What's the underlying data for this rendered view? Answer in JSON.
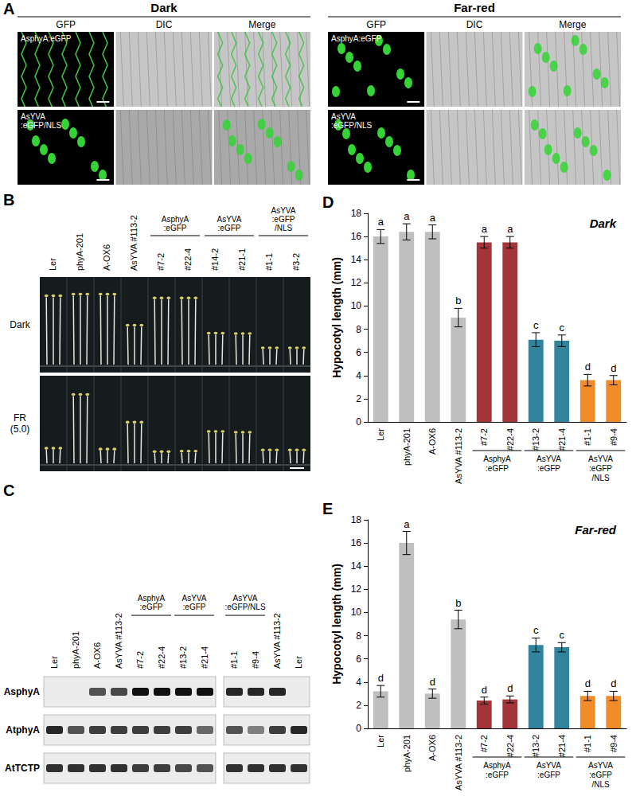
{
  "panel_A": {
    "label": "A",
    "groups": [
      {
        "title": "Dark",
        "columns": [
          "GFP",
          "DIC",
          "Merge"
        ],
        "rows": [
          "AsphyA:eGFP",
          "AsYVA\n:eGFP/NLS"
        ]
      },
      {
        "title": "Far-red",
        "columns": [
          "GFP",
          "DIC",
          "Merge"
        ],
        "rows": [
          "AsphyA:eGFP",
          "AsYVA\n:eGFP/NLS"
        ]
      }
    ]
  },
  "panel_B": {
    "label": "B",
    "lanes": [
      "Ler",
      "phyA-201",
      "A-OX6",
      "AsYVA #113-2",
      "#7-2",
      "#22-4",
      "#14-2",
      "#21-1",
      "#1-1",
      "#3-2"
    ],
    "groups": [
      {
        "label": "AsphyA\n:eGFP",
        "members": [
          "#7-2",
          "#22-4"
        ]
      },
      {
        "label": "AsYVA\n:eGFP",
        "members": [
          "#14-2",
          "#21-1"
        ]
      },
      {
        "label": "AsYVA\n:eGFP\n/NLS",
        "members": [
          "#1-1",
          "#3-2"
        ]
      }
    ],
    "rows": [
      "Dark",
      "FR\n(5.0)"
    ]
  },
  "panel_C": {
    "label": "C",
    "lanes": [
      [
        "Ler",
        "phyA-201",
        "A-OX6",
        "AsYVA #113-2",
        "#7-2",
        "#22-4",
        "#13-2",
        "#21-4"
      ],
      [
        "#1-1",
        "#9-4",
        "AsYVA #113-2",
        "Ler"
      ]
    ],
    "groups": [
      {
        "label": "AsphyA\n:eGFP",
        "members": [
          "#7-2",
          "#22-4"
        ]
      },
      {
        "label": "AsYVA\n:eGFP",
        "members": [
          "#13-2",
          "#21-4"
        ]
      },
      {
        "label": "AsYVA\n:eGFP/NLS",
        "members": [
          "#1-1",
          "#9-4"
        ]
      }
    ],
    "rows": [
      {
        "name": "AsphyA",
        "bands": [
          [
            0,
            0,
            0.7,
            0.75,
            1,
            1,
            1,
            1
          ],
          [
            0.9,
            0.9,
            0.9,
            0
          ]
        ]
      },
      {
        "name": "AtphyA",
        "bands": [
          [
            0.9,
            0.7,
            0.8,
            0.8,
            0.8,
            0.8,
            0.8,
            0.6
          ],
          [
            0.7,
            0.5,
            0.8,
            0.9
          ]
        ]
      },
      {
        "name": "AtTCTP",
        "bands": [
          [
            0.85,
            0.85,
            0.85,
            0.85,
            0.8,
            0.8,
            0.75,
            0.7
          ],
          [
            0.85,
            0.85,
            0.85,
            0.85
          ]
        ]
      }
    ]
  },
  "chart_data": [
    {
      "type": "bar",
      "panel": "D",
      "title": "Dark",
      "ylabel": "Hypocotyl length (mm)",
      "categories": [
        "Ler",
        "phyA-201",
        "A-OX6",
        "AsYVA #113-2",
        "#7-2",
        "#22-4",
        "#13-2",
        "#21-4",
        "#1-1",
        "#9-4"
      ],
      "values": [
        16.0,
        16.4,
        16.4,
        9.0,
        15.5,
        15.5,
        7.1,
        7.0,
        3.6,
        3.6
      ],
      "errors": [
        0.6,
        0.7,
        0.6,
        0.8,
        0.5,
        0.5,
        0.6,
        0.5,
        0.5,
        0.4
      ],
      "letters": [
        "a",
        "a",
        "a",
        "b",
        "a",
        "a",
        "c",
        "c",
        "d",
        "d"
      ],
      "colors": [
        "#bfbfbf",
        "#bfbfbf",
        "#bfbfbf",
        "#bfbfbf",
        "#a3343a",
        "#a3343a",
        "#31849b",
        "#31849b",
        "#f28c28",
        "#f28c28"
      ],
      "groups": [
        {
          "label": "AsphyA\n:eGFP",
          "members": [
            "#7-2",
            "#22-4"
          ]
        },
        {
          "label": "AsYVA\n:eGFP",
          "members": [
            "#13-2",
            "#21-4"
          ]
        },
        {
          "label": "AsYVA\n:eGFP\n/NLS",
          "members": [
            "#1-1",
            "#9-4"
          ]
        }
      ],
      "ylim": [
        0,
        18
      ],
      "yticks": [
        0,
        2,
        4,
        6,
        8,
        10,
        12,
        14,
        16,
        18
      ],
      "grid": false
    },
    {
      "type": "bar",
      "panel": "E",
      "title": "Far-red",
      "ylabel": "Hypocotyl length (mm)",
      "categories": [
        "Ler",
        "phyA-201",
        "A-OX6",
        "AsYVA #113-2",
        "#7-2",
        "#22-4",
        "#13-2",
        "#21-4",
        "#1-1",
        "#9-4"
      ],
      "values": [
        3.2,
        16.0,
        3.0,
        9.4,
        2.4,
        2.5,
        7.2,
        7.0,
        2.8,
        2.8
      ],
      "errors": [
        0.5,
        1.0,
        0.4,
        0.8,
        0.3,
        0.3,
        0.6,
        0.4,
        0.4,
        0.4
      ],
      "letters": [
        "d",
        "a",
        "d",
        "b",
        "d",
        "d",
        "c",
        "c",
        "d",
        "d"
      ],
      "colors": [
        "#bfbfbf",
        "#bfbfbf",
        "#bfbfbf",
        "#bfbfbf",
        "#a3343a",
        "#a3343a",
        "#31849b",
        "#31849b",
        "#f28c28",
        "#f28c28"
      ],
      "groups": [
        {
          "label": "AsphyA\n:eGFP",
          "members": [
            "#7-2",
            "#22-4"
          ]
        },
        {
          "label": "AsYVA\n:eGFP",
          "members": [
            "#13-2",
            "#21-4"
          ]
        },
        {
          "label": "AsYVA\n:eGFP\n/NLS",
          "members": [
            "#1-1",
            "#9-4"
          ]
        }
      ],
      "ylim": [
        0,
        18
      ],
      "yticks": [
        0,
        2,
        4,
        6,
        8,
        10,
        12,
        14,
        16,
        18
      ],
      "grid": false
    }
  ]
}
